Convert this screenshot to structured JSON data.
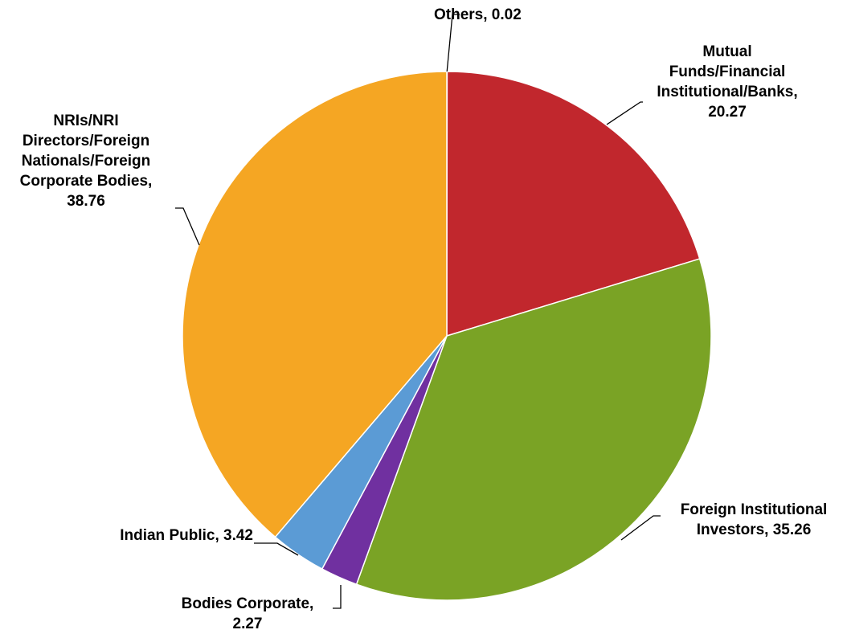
{
  "chart_data": {
    "type": "pie",
    "title": "",
    "start_angle_deg": 0,
    "direction": "clockwise",
    "slices": [
      {
        "label": "Others",
        "value": 0.02,
        "color": "#7a7a7a",
        "text_lines": [
          "Others,  0.02"
        ]
      },
      {
        "label": "Mutual Funds/Financial Institutional/Banks",
        "value": 20.27,
        "color": "#c1272d",
        "text_lines": [
          "Mutual",
          "Funds/Financial",
          "Institutional/Banks,",
          "20.27"
        ]
      },
      {
        "label": "Foreign Institutional Investors",
        "value": 35.26,
        "color": "#7aa325",
        "text_lines": [
          "Foreign Institutional",
          "Investors,  35.26"
        ]
      },
      {
        "label": "Bodies Corporate",
        "value": 2.27,
        "color": "#7030a0",
        "text_lines": [
          "Bodies Corporate,",
          "2.27"
        ]
      },
      {
        "label": "Indian Public",
        "value": 3.42,
        "color": "#5b9bd5",
        "text_lines": [
          "Indian Public,  3.42"
        ]
      },
      {
        "label": "NRIs/NRI Directors/Foreign Nationals/Foreign Corporate Bodies",
        "value": 38.76,
        "color": "#f5a623",
        "text_lines": [
          "NRIs/NRI",
          "Directors/Foreign",
          "Nationals/Foreign",
          "Corporate Bodies,",
          "38.76"
        ]
      }
    ]
  }
}
